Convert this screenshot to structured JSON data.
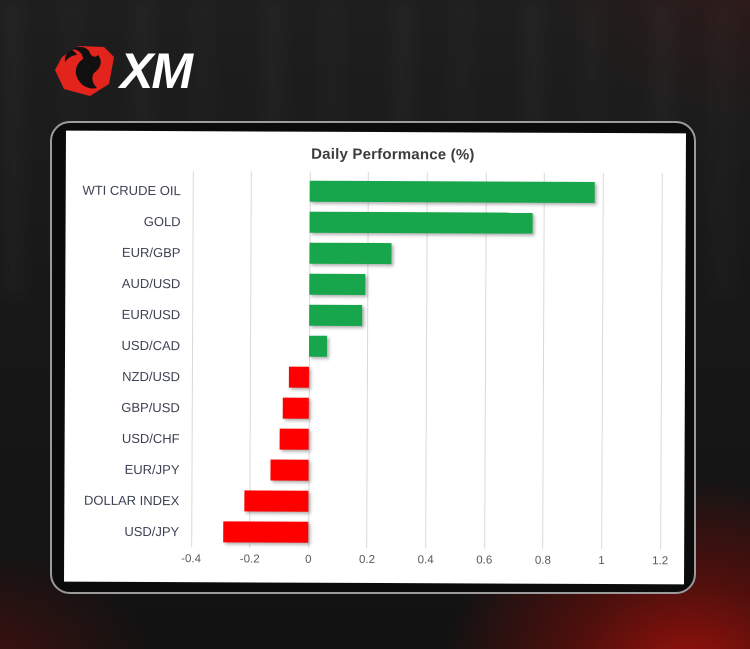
{
  "logo": {
    "text": "XM",
    "badge_color": "#e3241d",
    "bull_color": "#101010",
    "text_color": "#ffffff"
  },
  "chart_data": {
    "type": "bar",
    "orientation": "horizontal",
    "title": "Daily Performance (%)",
    "categories": [
      "WTI CRUDE OIL",
      "GOLD",
      "EUR/GBP",
      "AUD/USD",
      "EUR/USD",
      "USD/CAD",
      "NZD/USD",
      "GBP/USD",
      "USD/CHF",
      "EUR/JPY",
      "DOLLAR INDEX",
      "USD/JPY"
    ],
    "values": [
      0.97,
      0.76,
      0.28,
      0.19,
      0.18,
      0.06,
      -0.07,
      -0.09,
      -0.1,
      -0.13,
      -0.22,
      -0.29
    ],
    "xlabel": "",
    "ylabel": "",
    "xlim": [
      -0.4,
      1.2
    ],
    "ticks": [
      -0.4,
      -0.2,
      0,
      0.2,
      0.4,
      0.6,
      0.8,
      1,
      1.2
    ],
    "tick_labels": [
      "-0.4",
      "-0.2",
      "0",
      "0.2",
      "0.4",
      "0.6",
      "0.8",
      "1",
      "1.2"
    ],
    "grid": true,
    "legend": false,
    "positive_color": "#17a64b",
    "negative_color": "#fe0000",
    "gridline_color": "#d9d9d9"
  },
  "colors": {
    "background": "#181818",
    "frame_border": "#9b9b9b",
    "panel_background": "#ffffff",
    "corner_glow_red": "#7d120f",
    "title_text": "#3c3c3c",
    "category_text": "#3d4152",
    "axis_text": "#595959"
  }
}
